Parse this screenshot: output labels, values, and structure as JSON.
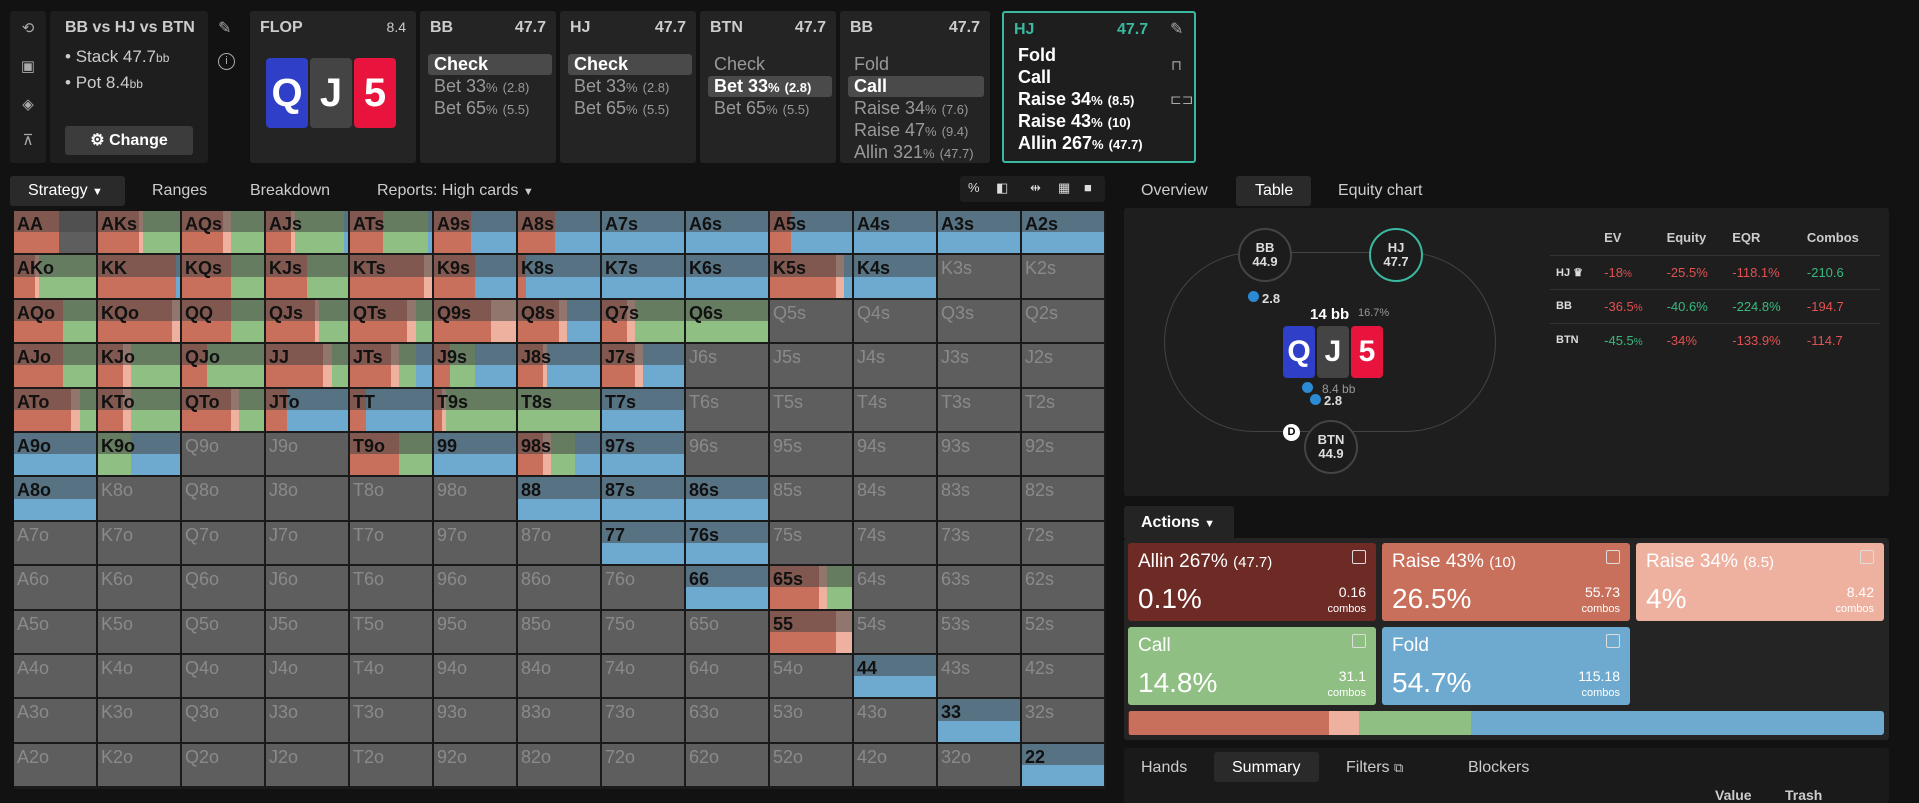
{
  "spot": {
    "title": "BB vs HJ vs BTN",
    "stack": "Stack 47.7",
    "stack_unit": "bb",
    "pot": "Pot 8.4",
    "pot_unit": "bb",
    "change_label": "Change"
  },
  "flop": {
    "label": "FLOP",
    "pot": "8.4",
    "cards": [
      {
        "rank": "Q",
        "color": "#2f3fc8"
      },
      {
        "rank": "J",
        "color": "#444444"
      },
      {
        "rank": "5",
        "color": "#e8143d"
      }
    ]
  },
  "nodes": [
    {
      "pos": "BB",
      "stack": "47.7",
      "actions": [
        {
          "label": "Check",
          "size": "",
          "sel": true
        },
        {
          "label": "Bet 33",
          "size": "(2.8)",
          "sel": false
        },
        {
          "label": "Bet 65",
          "size": "(5.5)",
          "sel": false
        }
      ]
    },
    {
      "pos": "HJ",
      "stack": "47.7",
      "actions": [
        {
          "label": "Check",
          "size": "",
          "sel": true
        },
        {
          "label": "Bet 33",
          "size": "(2.8)",
          "sel": false
        },
        {
          "label": "Bet 65",
          "size": "(5.5)",
          "sel": false
        }
      ]
    },
    {
      "pos": "BTN",
      "stack": "47.7",
      "actions": [
        {
          "label": "Check",
          "size": "",
          "sel": false
        },
        {
          "label": "Bet 33",
          "size": "(2.8)",
          "sel": true
        },
        {
          "label": "Bet 65",
          "size": "(5.5)",
          "sel": false
        }
      ]
    },
    {
      "pos": "BB",
      "stack": "47.7",
      "actions": [
        {
          "label": "Fold",
          "size": "",
          "sel": false
        },
        {
          "label": "Call",
          "size": "",
          "sel": true
        },
        {
          "label": "Raise 34",
          "size": "(7.6)",
          "sel": false
        },
        {
          "label": "Raise 47",
          "size": "(9.4)",
          "sel": false
        },
        {
          "label": "Allin 321",
          "size": "(47.7)",
          "sel": false
        }
      ]
    }
  ],
  "active_node": {
    "pos": "HJ",
    "stack": "47.7",
    "actions": [
      "Fold",
      "Call",
      "Raise 34",
      "Raise 43",
      "Allin 267"
    ],
    "sizes": [
      "",
      "",
      "(8.5)",
      "(10)",
      "(47.7)"
    ]
  },
  "tabs_left": {
    "strategy": "Strategy",
    "ranges": "Ranges",
    "breakdown": "Breakdown",
    "reports": "Reports: High cards"
  },
  "tabs_right": {
    "overview": "Overview",
    "table": "Table",
    "equity": "Equity chart"
  },
  "colors": {
    "allin": "#6e2a24",
    "raise43": "#c8705c",
    "raise34": "#eeb1a0",
    "call": "#8fbf83",
    "fold": "#6ea9cf",
    "empty": "#5e5e5e"
  },
  "table": {
    "seats": [
      {
        "pos": "BB",
        "stack": "44.9"
      },
      {
        "pos": "HJ",
        "stack": "47.7"
      },
      {
        "pos": "BTN",
        "stack": "44.9"
      }
    ],
    "pot": "14 bb",
    "pot_pct": "16.7%",
    "bb_bet": "2.8",
    "btn_bet": "2.8",
    "mid": "8.4 bb",
    "dealer": "D"
  },
  "equity_table": {
    "headers": [
      "",
      "EV",
      "Equity",
      "EQR",
      "Combos"
    ],
    "rows": [
      {
        "pos": "HJ ♛",
        "ev": "-18",
        "ev_u": "%",
        "eq": "-25.5%",
        "eqr": "-118.1%",
        "combos": "-210.6"
      },
      {
        "pos": "BB",
        "ev": "-36.5",
        "ev_u": "%",
        "eq": "-40.6%",
        "eqr": "-224.8%",
        "combos": "-194.7"
      },
      {
        "pos": "BTN",
        "ev": "-45.5",
        "ev_u": "%",
        "eq": "-34%",
        "eqr": "-133.9%",
        "combos": "-114.7"
      }
    ]
  },
  "actions_header": "Actions",
  "action_boxes": [
    {
      "name": "Allin 267",
      "size": "(47.7)",
      "pct": "0.1%",
      "combos": "0.16",
      "combos_lbl": "combos"
    },
    {
      "name": "Raise 43",
      "size": "(10)",
      "pct": "26.5%",
      "combos": "55.73",
      "combos_lbl": "combos"
    },
    {
      "name": "Raise 34",
      "size": "(8.5)",
      "pct": "4%",
      "combos": "8.42",
      "combos_lbl": "combos"
    },
    {
      "name": "Call",
      "size": "",
      "pct": "14.8%",
      "combos": "31.1",
      "combos_lbl": "combos"
    },
    {
      "name": "Fold",
      "size": "",
      "pct": "54.7%",
      "combos": "115.18",
      "combos_lbl": "combos"
    }
  ],
  "freq_bar": [
    0.1,
    26.5,
    4,
    14.8,
    54.7
  ],
  "bottom_tabs": {
    "hands": "Hands",
    "summary": "Summary",
    "filters": "Filters",
    "blockers": "Blockers"
  },
  "bottom_headers": {
    "value": "Value",
    "trash": "Trash"
  },
  "matrix": [
    [
      "AA|R55F0C0",
      "AKs|R50r5C45",
      "AQs|R50r10C40",
      "AJs|R30r5C60F5",
      "ATs|R40C55F5",
      "A9s|R45F55",
      "A8s|R45F55",
      "A7s|F100",
      "A6s|F100",
      "A5s|R25F75",
      "A4s|F100",
      "A3s|F100",
      "A2s|F100"
    ],
    [
      "AKo|R25r5C70",
      "KK|R95F5",
      "KQs|R60C40",
      "KJs|R50C50",
      "KTs|R90r10",
      "K9s|R50F50",
      "K8s|R10F90",
      "K7s|F100",
      "K6s|F100",
      "K5s|R80r10F10",
      "K4s|F100",
      "K3s|E",
      "K2s|E"
    ],
    [
      "AQo|R60C40",
      "KQo|R90r10",
      "QQ|R60C40",
      "QJs|R60r5C35",
      "QTs|R70r10C20",
      "Q9s|R70r30",
      "Q8s|R50r10F40",
      "Q7s|R30r10C60",
      "Q6s|C100",
      "Q5s|E",
      "Q4s|E",
      "Q3s|E",
      "Q2s|E"
    ],
    [
      "AJo|R60C40",
      "KJo|R30r10C60",
      "QJo|R30C70",
      "JJ|R70r10C20",
      "JTs|R50r10C20F20",
      "J9s|R20C30F50",
      "J8s|R30r5F65",
      "J7s|R40r10F50",
      "J6s|E",
      "J5s|E",
      "J4s|E",
      "J3s|E",
      "J2s|E"
    ],
    [
      "ATo|R70r10C20",
      "KTo|R30r10C60",
      "QTo|R60r10C30",
      "JTo|R25F75",
      "TT|R20F80",
      "T9s|R10r5C85",
      "T8s|C100",
      "T7s|F100",
      "T6s|E",
      "T5s|E",
      "T4s|E",
      "T3s|E",
      "T2s|E"
    ],
    [
      "A9o|F100",
      "K9o|C40F60",
      "Q9o|E",
      "J9o|E",
      "T9o|R60C40",
      "99|F100",
      "98s|R30r10C30F30",
      "97s|F100",
      "96s|E",
      "95s|E",
      "94s|E",
      "93s|E",
      "92s|E"
    ],
    [
      "A8o|F100",
      "K8o|E",
      "Q8o|E",
      "J8o|E",
      "T8o|E",
      "98o|E",
      "88|F100",
      "87s|F100",
      "86s|F100",
      "85s|E",
      "84s|E",
      "83s|E",
      "82s|E"
    ],
    [
      "A7o|E",
      "K7o|E",
      "Q7o|E",
      "J7o|E",
      "T7o|E",
      "97o|E",
      "87o|E",
      "77|F100",
      "76s|F100",
      "75s|E",
      "74s|E",
      "73s|E",
      "72s|E"
    ],
    [
      "A6o|E",
      "K6o|E",
      "Q6o|E",
      "J6o|E",
      "T6o|E",
      "96o|E",
      "86o|E",
      "76o|E",
      "66|F100",
      "65s|R60r10C30",
      "64s|E",
      "63s|E",
      "62s|E"
    ],
    [
      "A5o|E",
      "K5o|E",
      "Q5o|E",
      "J5o|E",
      "T5o|E",
      "95o|E",
      "85o|E",
      "75o|E",
      "65o|E",
      "55|R80r20",
      "54s|E",
      "53s|E",
      "52s|E"
    ],
    [
      "A4o|E",
      "K4o|E",
      "Q4o|E",
      "J4o|E",
      "T4o|E",
      "94o|E",
      "84o|E",
      "74o|E",
      "64o|E",
      "54o|E",
      "44|F100",
      "43s|E",
      "42s|E"
    ],
    [
      "A3o|E",
      "K3o|E",
      "Q3o|E",
      "J3o|E",
      "T3o|E",
      "93o|E",
      "83o|E",
      "73o|E",
      "63o|E",
      "53o|E",
      "43o|E",
      "33|F100",
      "32s|E"
    ],
    [
      "A2o|E",
      "K2o|E",
      "Q2o|E",
      "J2o|E",
      "T2o|E",
      "92o|E",
      "82o|E",
      "72o|E",
      "62o|E",
      "52o|E",
      "42o|E",
      "32o|E",
      "22|F100"
    ]
  ]
}
